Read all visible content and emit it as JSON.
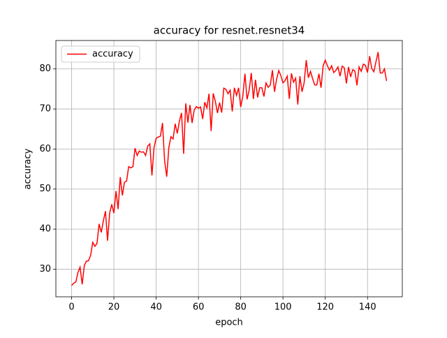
{
  "chart_data": {
    "type": "line",
    "title": "accuracy for resnet.resnet34",
    "x_label": "epoch",
    "y_label": "accuracy",
    "x": [
      0,
      1,
      2,
      3,
      4,
      5,
      6,
      7,
      8,
      9,
      10,
      11,
      12,
      13,
      14,
      15,
      16,
      17,
      18,
      19,
      20,
      21,
      22,
      23,
      24,
      25,
      26,
      27,
      28,
      29,
      30,
      31,
      32,
      33,
      34,
      35,
      36,
      37,
      38,
      39,
      40,
      41,
      42,
      43,
      44,
      45,
      46,
      47,
      48,
      49,
      50,
      51,
      52,
      53,
      54,
      55,
      56,
      57,
      58,
      59,
      60,
      61,
      62,
      63,
      64,
      65,
      66,
      67,
      68,
      69,
      70,
      71,
      72,
      73,
      74,
      75,
      76,
      77,
      78,
      79,
      80,
      81,
      82,
      83,
      84,
      85,
      86,
      87,
      88,
      89,
      90,
      91,
      92,
      93,
      94,
      95,
      96,
      97,
      98,
      99,
      100,
      101,
      102,
      103,
      104,
      105,
      106,
      107,
      108,
      109,
      110,
      111,
      112,
      113,
      114,
      115,
      116,
      117,
      118,
      119,
      120,
      121,
      122,
      123,
      124,
      125,
      126,
      127,
      128,
      129,
      130,
      131,
      132,
      133,
      134,
      135,
      136,
      137,
      138,
      139,
      140,
      141,
      142,
      143,
      144,
      145,
      146,
      147,
      148,
      149
    ],
    "series": [
      {
        "name": "accuracy",
        "color": "#ff0000",
        "values": [
          25.9,
          26.5,
          26.8,
          29.2,
          30.5,
          26.2,
          30.9,
          32.0,
          32.1,
          33.5,
          36.7,
          35.7,
          36.4,
          41.3,
          39.2,
          42.0,
          44.5,
          37.1,
          44.0,
          46.2,
          44.0,
          49.5,
          45.0,
          53.0,
          48.4,
          51.7,
          52.0,
          55.6,
          55.3,
          55.6,
          60.2,
          58.4,
          59.5,
          59.2,
          59.3,
          58.4,
          60.7,
          61.3,
          53.4,
          60.4,
          62.7,
          63.0,
          63.2,
          66.5,
          57.0,
          53.1,
          60.4,
          63.1,
          62.5,
          66.3,
          63.9,
          67.0,
          69.0,
          58.8,
          71.4,
          66.6,
          71.0,
          66.5,
          69.7,
          70.6,
          70.2,
          70.5,
          67.5,
          71.7,
          70.3,
          73.8,
          64.5,
          73.9,
          71.9,
          69.0,
          71.6,
          69.1,
          75.2,
          74.9,
          73.8,
          74.7,
          69.4,
          75.3,
          73.4,
          75.3,
          70.5,
          73.2,
          78.8,
          72.4,
          74.7,
          79.0,
          72.5,
          77.3,
          72.9,
          75.3,
          75.3,
          73.1,
          76.5,
          75.4,
          76.0,
          79.7,
          74.3,
          77.5,
          79.6,
          78.3,
          76.5,
          77.1,
          78.2,
          72.5,
          78.9,
          76.7,
          77.7,
          71.1,
          78.2,
          74.3,
          76.5,
          82.2,
          77.8,
          79.4,
          77.6,
          76.0,
          76.0,
          78.8,
          75.3,
          80.8,
          82.2,
          80.8,
          79.7,
          80.8,
          79.1,
          79.6,
          80.5,
          78.2,
          80.7,
          80.3,
          76.4,
          80.5,
          78.0,
          79.8,
          79.5,
          75.9,
          80.5,
          79.4,
          81.2,
          80.9,
          79.1,
          83.2,
          80.1,
          79.3,
          81.8,
          84.2,
          79.0,
          79.0,
          80.0,
          77.0
        ]
      }
    ],
    "xlim": [
      -7.45,
      156.45
    ],
    "ylim": [
      23.1,
      87.1
    ],
    "xticks": [
      0,
      20,
      40,
      60,
      80,
      100,
      120,
      140
    ],
    "yticks": [
      30,
      40,
      50,
      60,
      70,
      80
    ],
    "grid": true,
    "legend": "upper left"
  }
}
